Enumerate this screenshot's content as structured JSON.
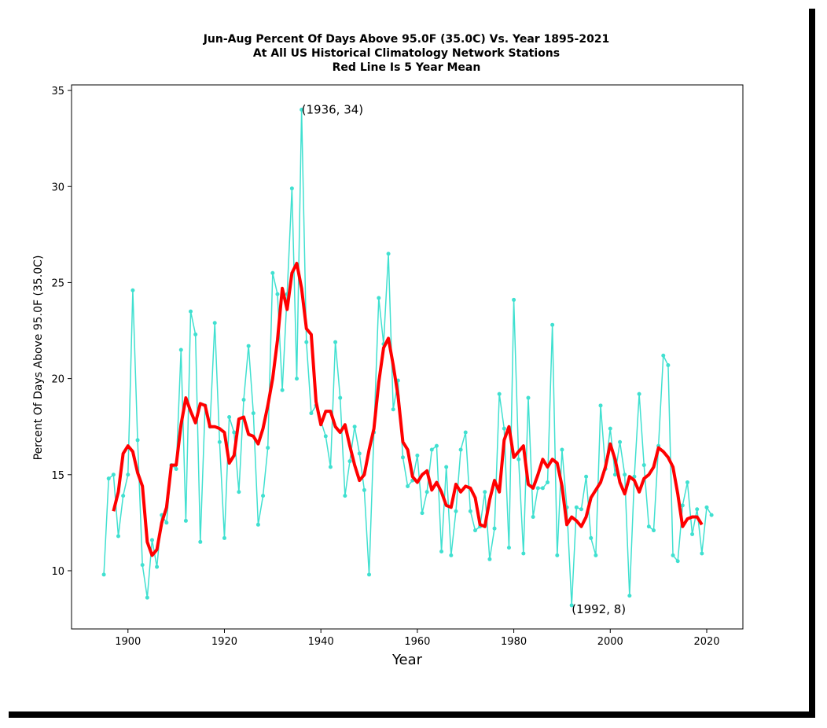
{
  "chart_data": {
    "type": "line",
    "title": [
      "Jun-Aug Percent Of Days Above 95.0F (35.0C) Vs. Year 1895-2021",
      "At All US Historical Climatology Network Stations",
      "Red Line Is 5 Year Mean"
    ],
    "xlabel": "Year",
    "ylabel": "Percent Of Days Above 95.0F (35.0C)",
    "xlim": [
      1888.3,
      2027.5
    ],
    "ylim": [
      6.97,
      35.29
    ],
    "xticks": [
      1900,
      1920,
      1940,
      1960,
      1980,
      2000,
      2020
    ],
    "yticks": [
      10,
      15,
      20,
      25,
      30,
      35
    ],
    "grid": false,
    "series": [
      {
        "color": "#40e0d0",
        "markers": true,
        "linewidth": 1.5,
        "x": [
          1895,
          1896,
          1897,
          1898,
          1899,
          1900,
          1901,
          1902,
          1903,
          1904,
          1905,
          1906,
          1907,
          1908,
          1909,
          1910,
          1911,
          1912,
          1913,
          1914,
          1915,
          1916,
          1917,
          1918,
          1919,
          1920,
          1921,
          1922,
          1923,
          1924,
          1925,
          1926,
          1927,
          1928,
          1929,
          1930,
          1931,
          1932,
          1933,
          1934,
          1935,
          1936,
          1937,
          1938,
          1939,
          1940,
          1941,
          1942,
          1943,
          1944,
          1945,
          1946,
          1947,
          1948,
          1949,
          1950,
          1951,
          1952,
          1953,
          1954,
          1955,
          1956,
          1957,
          1958,
          1959,
          1960,
          1961,
          1962,
          1963,
          1964,
          1965,
          1966,
          1967,
          1968,
          1969,
          1970,
          1971,
          1972,
          1973,
          1974,
          1975,
          1976,
          1977,
          1978,
          1979,
          1980,
          1981,
          1982,
          1983,
          1984,
          1985,
          1986,
          1987,
          1988,
          1989,
          1990,
          1991,
          1992,
          1993,
          1994,
          1995,
          1996,
          1997,
          1998,
          1999,
          2000,
          2001,
          2002,
          2003,
          2004,
          2005,
          2006,
          2007,
          2008,
          2009,
          2010,
          2011,
          2012,
          2013,
          2014,
          2015,
          2016,
          2017,
          2018,
          2019,
          2020,
          2021
        ],
        "values": [
          9.8,
          14.8,
          15.0,
          11.8,
          13.9,
          15.0,
          24.6,
          16.8,
          10.3,
          8.6,
          11.6,
          10.2,
          12.9,
          12.5,
          15.5,
          15.3,
          21.5,
          12.6,
          23.5,
          22.3,
          11.5,
          18.6,
          17.5,
          22.9,
          16.7,
          11.7,
          18.0,
          17.2,
          14.1,
          18.9,
          21.7,
          18.2,
          12.4,
          13.9,
          16.4,
          25.5,
          24.4,
          19.4,
          24.4,
          29.9,
          20.0,
          34.0,
          21.9,
          18.2,
          18.6,
          17.8,
          17.0,
          15.4,
          21.9,
          19.0,
          13.9,
          15.7,
          17.5,
          16.1,
          14.2,
          9.8,
          17.2,
          24.2,
          21.8,
          26.5,
          18.4,
          19.9,
          15.9,
          14.4,
          14.7,
          16.0,
          13.0,
          14.1,
          16.3,
          16.5,
          11.0,
          15.4,
          10.8,
          13.1,
          16.3,
          17.2,
          13.1,
          12.1,
          12.3,
          14.1,
          10.6,
          12.2,
          19.2,
          17.4,
          11.2,
          24.1,
          15.8,
          10.9,
          19.0,
          12.8,
          14.3,
          14.3,
          14.6,
          22.8,
          10.8,
          16.3,
          13.3,
          8.2,
          13.3,
          13.2,
          14.9,
          11.7,
          10.8,
          18.6,
          15.3,
          17.4,
          15.0,
          16.7,
          15.0,
          8.7,
          14.9,
          19.2,
          15.5,
          12.3,
          12.1,
          16.5,
          21.2,
          20.7,
          10.8,
          10.5,
          13.4,
          14.6,
          11.9,
          13.2,
          10.9,
          13.3,
          12.9
        ]
      },
      {
        "color": "#ff0000",
        "markers": false,
        "linewidth": 4,
        "x": [
          1897,
          1898,
          1899,
          1900,
          1901,
          1902,
          1903,
          1904,
          1905,
          1906,
          1907,
          1908,
          1909,
          1910,
          1911,
          1912,
          1913,
          1914,
          1915,
          1916,
          1917,
          1918,
          1919,
          1920,
          1921,
          1922,
          1923,
          1924,
          1925,
          1926,
          1927,
          1928,
          1929,
          1930,
          1931,
          1932,
          1933,
          1934,
          1935,
          1936,
          1937,
          1938,
          1939,
          1940,
          1941,
          1942,
          1943,
          1944,
          1945,
          1946,
          1947,
          1948,
          1949,
          1950,
          1951,
          1952,
          1953,
          1954,
          1955,
          1956,
          1957,
          1958,
          1959,
          1960,
          1961,
          1962,
          1963,
          1964,
          1965,
          1966,
          1967,
          1968,
          1969,
          1970,
          1971,
          1972,
          1973,
          1974,
          1975,
          1976,
          1977,
          1978,
          1979,
          1980,
          1981,
          1982,
          1983,
          1984,
          1985,
          1986,
          1987,
          1988,
          1989,
          1990,
          1991,
          1992,
          1993,
          1994,
          1995,
          1996,
          1997,
          1998,
          1999,
          2000,
          2001,
          2002,
          2003,
          2004,
          2005,
          2006,
          2007,
          2008,
          2009,
          2010,
          2011,
          2012,
          2013,
          2014,
          2015,
          2016,
          2017,
          2018,
          2019
        ],
        "values": [
          13.1,
          14.1,
          16.1,
          16.5,
          16.2,
          15.1,
          14.4,
          11.5,
          10.8,
          11.1,
          12.5,
          13.3,
          15.5,
          15.5,
          17.6,
          19.0,
          18.3,
          17.7,
          18.7,
          18.6,
          17.5,
          17.5,
          17.4,
          17.2,
          15.6,
          16.0,
          17.9,
          18.0,
          17.1,
          17.0,
          16.6,
          17.4,
          18.6,
          20.0,
          22.0,
          24.7,
          23.6,
          25.5,
          26.0,
          24.7,
          22.6,
          22.3,
          18.8,
          17.6,
          18.3,
          18.3,
          17.5,
          17.2,
          17.6,
          16.5,
          15.5,
          14.7,
          15.0,
          16.3,
          17.4,
          19.8,
          21.6,
          22.1,
          20.7,
          19.1,
          16.7,
          16.3,
          14.9,
          14.6,
          15.0,
          15.2,
          14.2,
          14.6,
          14.1,
          13.4,
          13.3,
          14.5,
          14.1,
          14.4,
          14.3,
          13.8,
          12.4,
          12.3,
          13.7,
          14.7,
          14.1,
          16.8,
          17.5,
          15.9,
          16.2,
          16.5,
          14.5,
          14.3,
          15.0,
          15.8,
          15.4,
          15.8,
          15.6,
          14.4,
          12.4,
          12.8,
          12.6,
          12.3,
          12.8,
          13.8,
          14.2,
          14.6,
          15.4,
          16.6,
          15.8,
          14.6,
          14.0,
          14.9,
          14.7,
          14.1,
          14.8,
          15.0,
          15.4,
          16.4,
          16.2,
          15.9,
          15.4,
          14.0,
          12.3,
          12.7,
          12.8,
          12.8,
          12.4
        ]
      }
    ],
    "annotations": [
      {
        "text": "(1936, 34)",
        "x": 1936,
        "y": 34
      },
      {
        "text": "(1992, 8)",
        "x": 1992,
        "y": 8
      }
    ]
  }
}
